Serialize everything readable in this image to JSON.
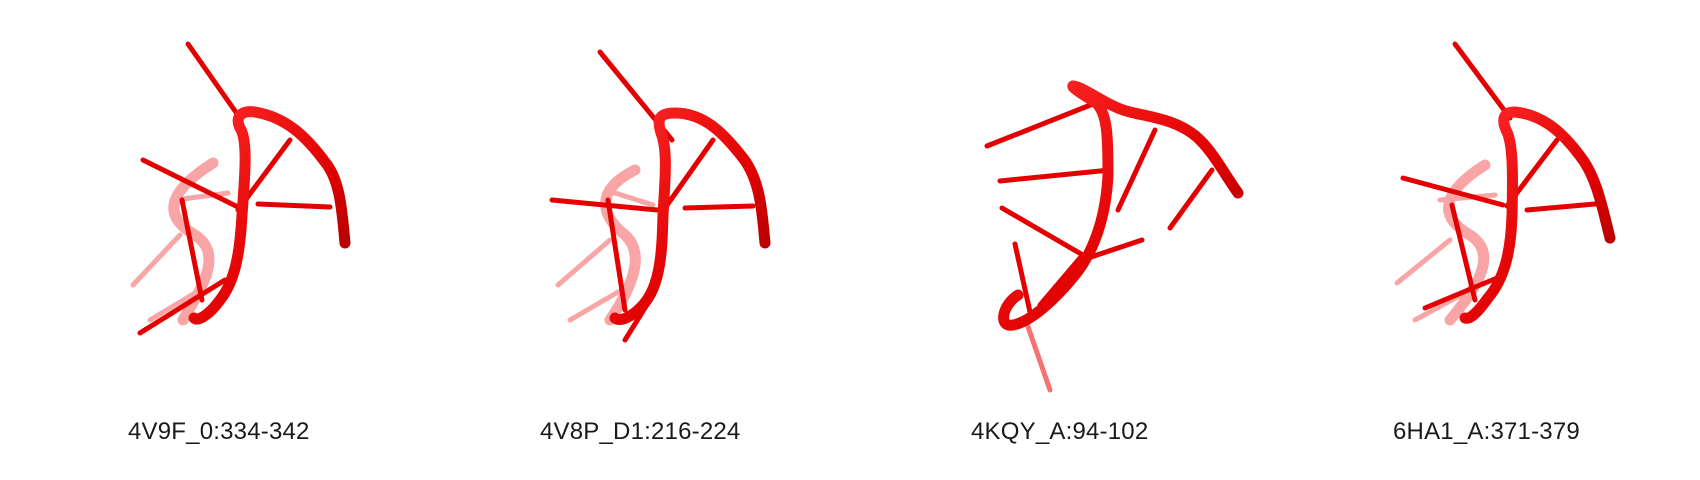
{
  "panels": [
    {
      "label": "4V9F_0:334-342"
    },
    {
      "label": "4V8P_D1:216-224"
    },
    {
      "label": "4KQY_A:94-102"
    },
    {
      "label": "6HA1_A:371-379"
    }
  ],
  "colors": {
    "backbone": "#ee0000",
    "backbone_dark": "#a50000",
    "base_stick": "#e40000"
  }
}
